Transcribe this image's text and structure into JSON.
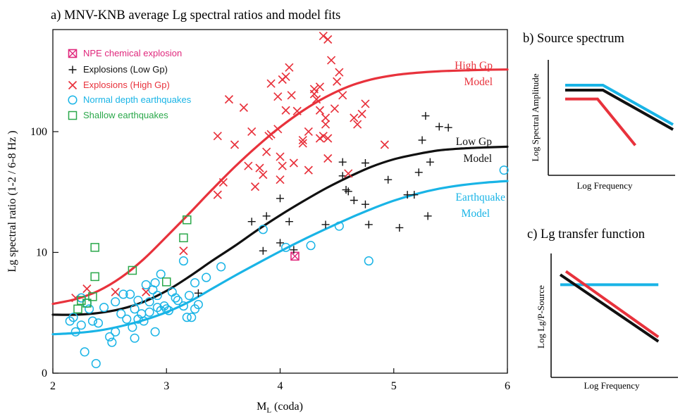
{
  "colors": {
    "red": "#e8323c",
    "black": "#111111",
    "cyan": "#19b4e6",
    "green": "#2aa84a",
    "magenta": "#e0287c"
  },
  "chart_data": [
    {
      "type": "scatter",
      "title": "a) MNV-KNB average Lg spectral ratios and model fits",
      "xlabel": "ML (coda)",
      "xlabel_main": "M",
      "xlabel_sub": "L",
      "xlabel_rest": " (coda)",
      "ylabel": "Lg spectral ratio (1-2 / 6-8 Hz )",
      "xlim": [
        2,
        6
      ],
      "ylim": [
        1,
        700
      ],
      "yscale": "log",
      "xticks": [
        "2",
        "3",
        "4",
        "5",
        "6"
      ],
      "yticks": [
        {
          "value": 1,
          "label": "0"
        },
        {
          "value": 10,
          "label": "10"
        },
        {
          "value": 100,
          "label": "100"
        }
      ],
      "legend": [
        {
          "label": "NPE chemical explosion",
          "marker": "boxx",
          "color": "#e0287c"
        },
        {
          "label": "Explosions (Low Gp)",
          "marker": "plus",
          "color": "#111111"
        },
        {
          "label": "Explosions (High Gp)",
          "marker": "x",
          "color": "#e8323c"
        },
        {
          "label": "Normal depth earthquakes",
          "marker": "circle",
          "color": "#19b4e6"
        },
        {
          "label": "Shallow earthquakes",
          "marker": "square",
          "color": "#2aa84a"
        }
      ],
      "curve_labels": [
        {
          "lines": [
            "High Gp",
            "Model"
          ],
          "color": "#e8323c"
        },
        {
          "lines": [
            "Low Gp",
            "Model"
          ],
          "color": "#111111"
        },
        {
          "lines": [
            "Earthquake",
            "Model"
          ],
          "color": "#19b4e6"
        }
      ],
      "series": [
        {
          "name": "High Gp Model",
          "kind": "curve",
          "color": "#e8323c",
          "x": [
            2.0,
            2.2,
            2.4,
            2.6,
            2.8,
            3.0,
            3.2,
            3.4,
            3.6,
            3.8,
            4.0,
            4.2,
            4.4,
            4.6,
            4.8,
            5.0,
            5.2,
            5.4,
            5.6,
            5.8,
            6.0
          ],
          "y": [
            3.75,
            4.1,
            4.8,
            6.2,
            8.8,
            13.5,
            21,
            33,
            51,
            76,
            109,
            149,
            193,
            236,
            270,
            293,
            307,
            316,
            321,
            325,
            327
          ]
        },
        {
          "name": "Low Gp Model",
          "kind": "curve",
          "color": "#111111",
          "x": [
            2.0,
            2.2,
            2.4,
            2.6,
            2.8,
            3.0,
            3.2,
            3.4,
            3.6,
            3.8,
            4.0,
            4.2,
            4.4,
            4.6,
            4.8,
            5.0,
            5.2,
            5.4,
            5.6,
            5.8,
            6.0
          ],
          "y": [
            3.05,
            3.05,
            3.15,
            3.4,
            3.9,
            4.8,
            6.3,
            8.5,
            11.3,
            15.3,
            20.3,
            26.4,
            33.8,
            42,
            51,
            59,
            65,
            70,
            72.5,
            74,
            75
          ]
        },
        {
          "name": "Earthquake Model",
          "kind": "curve",
          "color": "#19b4e6",
          "x": [
            2.0,
            2.2,
            2.4,
            2.6,
            2.8,
            3.0,
            3.2,
            3.4,
            3.6,
            3.8,
            4.0,
            4.2,
            4.4,
            4.6,
            4.8,
            5.0,
            5.2,
            5.4,
            5.6,
            5.8,
            6.0
          ],
          "y": [
            2.1,
            2.15,
            2.25,
            2.45,
            2.75,
            3.2,
            3.9,
            5.0,
            6.4,
            8.1,
            10.2,
            12.7,
            15.6,
            19.0,
            22.8,
            26.8,
            30.5,
            33.7,
            36.1,
            37.8,
            39
          ]
        },
        {
          "name": "NPE chemical explosion",
          "marker": "boxx",
          "color": "#e0287c",
          "points": [
            [
              4.13,
              9.3
            ]
          ]
        },
        {
          "name": "Explosions (Low Gp)",
          "marker": "plus",
          "color": "#111111",
          "points": [
            [
              3.28,
              4.6
            ],
            [
              3.75,
              18
            ],
            [
              3.88,
              20
            ],
            [
              3.85,
              10.3
            ],
            [
              4.0,
              28
            ],
            [
              4.0,
              12
            ],
            [
              4.08,
              18
            ],
            [
              4.12,
              10.5
            ],
            [
              4.4,
              17
            ],
            [
              4.55,
              56
            ],
            [
              4.55,
              43
            ],
            [
              4.58,
              33
            ],
            [
              4.6,
              32
            ],
            [
              4.65,
              27
            ],
            [
              4.75,
              25
            ],
            [
              4.75,
              55
            ],
            [
              4.78,
              17
            ],
            [
              4.95,
              40
            ],
            [
              5.05,
              16
            ],
            [
              5.12,
              30
            ],
            [
              5.18,
              30
            ],
            [
              5.22,
              46
            ],
            [
              5.25,
              85
            ],
            [
              5.28,
              135
            ],
            [
              5.32,
              56
            ],
            [
              5.3,
              20
            ],
            [
              5.4,
              110
            ],
            [
              5.48,
              108
            ]
          ]
        },
        {
          "name": "Explosions (High Gp)",
          "marker": "x",
          "color": "#e8323c",
          "points": [
            [
              2.2,
              4.2
            ],
            [
              2.3,
              5.0
            ],
            [
              2.55,
              4.7
            ],
            [
              2.82,
              4.7
            ],
            [
              3.15,
              10.3
            ],
            [
              3.45,
              30
            ],
            [
              3.5,
              38
            ],
            [
              3.45,
              92
            ],
            [
              3.55,
              185
            ],
            [
              3.6,
              78
            ],
            [
              3.68,
              158
            ],
            [
              3.72,
              52
            ],
            [
              3.75,
              100
            ],
            [
              3.78,
              35
            ],
            [
              3.82,
              50
            ],
            [
              3.85,
              44
            ],
            [
              3.88,
              68
            ],
            [
              3.9,
              92
            ],
            [
              3.92,
              250
            ],
            [
              3.92,
              95
            ],
            [
              3.98,
              195
            ],
            [
              3.98,
              105
            ],
            [
              4.0,
              40
            ],
            [
              4.0,
              62
            ],
            [
              4.02,
              270
            ],
            [
              4.05,
              285
            ],
            [
              4.02,
              52
            ],
            [
              4.05,
              150
            ],
            [
              4.08,
              340
            ],
            [
              4.1,
              200
            ],
            [
              4.12,
              55
            ],
            [
              4.15,
              148
            ],
            [
              4.2,
              85
            ],
            [
              4.2,
              80
            ],
            [
              4.25,
              100
            ],
            [
              4.3,
              205
            ],
            [
              4.3,
              225
            ],
            [
              4.32,
              185
            ],
            [
              4.25,
              48
            ],
            [
              4.35,
              235
            ],
            [
              4.35,
              150
            ],
            [
              4.38,
              92
            ],
            [
              4.4,
              130
            ],
            [
              4.4,
              115
            ],
            [
              4.35,
              88
            ],
            [
              4.42,
              60
            ],
            [
              4.42,
              88
            ],
            [
              4.38,
              620
            ],
            [
              4.42,
              580
            ],
            [
              4.5,
              260
            ],
            [
              4.48,
              155
            ],
            [
              4.45,
              390
            ],
            [
              4.52,
              310
            ],
            [
              4.55,
              200
            ],
            [
              4.6,
              45
            ],
            [
              4.65,
              130
            ],
            [
              4.68,
              115
            ],
            [
              4.72,
              140
            ],
            [
              4.75,
              170
            ],
            [
              4.92,
              78
            ]
          ]
        },
        {
          "name": "Normal depth earthquakes",
          "marker": "circle",
          "color": "#19b4e6",
          "points": [
            [
              2.15,
              2.7
            ],
            [
              2.18,
              2.9
            ],
            [
              2.2,
              2.2
            ],
            [
              2.25,
              2.5
            ],
            [
              2.25,
              4.2
            ],
            [
              2.28,
              1.5
            ],
            [
              2.3,
              3.8
            ],
            [
              2.32,
              3.4
            ],
            [
              2.35,
              2.7
            ],
            [
              2.38,
              1.2
            ],
            [
              2.4,
              2.6
            ],
            [
              2.45,
              3.5
            ],
            [
              2.5,
              2.0
            ],
            [
              2.52,
              1.8
            ],
            [
              2.55,
              2.2
            ],
            [
              2.55,
              3.9
            ],
            [
              2.6,
              3.1
            ],
            [
              2.62,
              4.5
            ],
            [
              2.65,
              2.8
            ],
            [
              2.68,
              4.5
            ],
            [
              2.7,
              2.4
            ],
            [
              2.72,
              3.4
            ],
            [
              2.72,
              1.95
            ],
            [
              2.75,
              4.0
            ],
            [
              2.75,
              2.8
            ],
            [
              2.78,
              3.1
            ],
            [
              2.8,
              2.7
            ],
            [
              2.82,
              5.4
            ],
            [
              2.85,
              3.9
            ],
            [
              2.85,
              3.2
            ],
            [
              2.88,
              4.9
            ],
            [
              2.9,
              5.6
            ],
            [
              2.9,
              2.2
            ],
            [
              2.92,
              4.4
            ],
            [
              2.92,
              3.5
            ],
            [
              2.95,
              3.3
            ],
            [
              2.95,
              6.6
            ],
            [
              2.98,
              3.6
            ],
            [
              3.0,
              3.4
            ],
            [
              3.02,
              3.3
            ],
            [
              3.05,
              4.7
            ],
            [
              3.08,
              4.2
            ],
            [
              3.1,
              4.0
            ],
            [
              3.15,
              3.6
            ],
            [
              3.15,
              8.5
            ],
            [
              3.18,
              2.9
            ],
            [
              3.2,
              4.4
            ],
            [
              3.22,
              2.9
            ],
            [
              3.25,
              3.4
            ],
            [
              3.25,
              5.6
            ],
            [
              3.28,
              3.7
            ],
            [
              3.35,
              6.2
            ],
            [
              3.48,
              7.6
            ],
            [
              3.85,
              15.5
            ],
            [
              4.05,
              11.0
            ],
            [
              4.27,
              11.4
            ],
            [
              4.52,
              16.5
            ],
            [
              4.78,
              8.5
            ],
            [
              5.97,
              48
            ]
          ]
        },
        {
          "name": "Shallow earthquakes",
          "marker": "square",
          "color": "#2aa84a",
          "points": [
            [
              2.22,
              3.4
            ],
            [
              2.25,
              4.0
            ],
            [
              2.3,
              3.8
            ],
            [
              2.35,
              4.3
            ],
            [
              2.37,
              6.3
            ],
            [
              2.37,
              11.0
            ],
            [
              2.7,
              7.1
            ],
            [
              3.0,
              5.7
            ],
            [
              3.15,
              13.2
            ],
            [
              3.18,
              18.6
            ]
          ]
        }
      ]
    },
    {
      "type": "line",
      "title": "b) Source spectrum",
      "xlabel": "Log Frequency",
      "ylabel": "Log Spectral Amplitude",
      "xlim": [
        0,
        10
      ],
      "ylim": [
        0,
        10
      ],
      "series": [
        {
          "color": "#19b4e6",
          "x": [
            0,
            3.5,
            10
          ],
          "y": [
            8.5,
            8.5,
            4.5
          ]
        },
        {
          "color": "#111111",
          "x": [
            0,
            3.5,
            10
          ],
          "y": [
            8.0,
            8.0,
            4.0
          ]
        },
        {
          "color": "#e8323c",
          "x": [
            0,
            3,
            6.5
          ],
          "y": [
            7.1,
            7.1,
            2.4
          ]
        }
      ]
    },
    {
      "type": "line",
      "title": "c) Lg transfer function",
      "xlabel": "Log Frequency",
      "ylabel": "Log Lg/P-Source",
      "xlim": [
        0,
        10
      ],
      "ylim": [
        0,
        10
      ],
      "series": [
        {
          "color": "#19b4e6",
          "x": [
            0,
            8.7
          ],
          "y": [
            7.7,
            7.7
          ]
        },
        {
          "color": "#111111",
          "x": [
            0,
            8.7
          ],
          "y": [
            8.6,
            2.6
          ]
        },
        {
          "color": "#e8323c",
          "x": [
            0.5,
            8.7
          ],
          "y": [
            8.9,
            3.0
          ]
        }
      ]
    }
  ]
}
